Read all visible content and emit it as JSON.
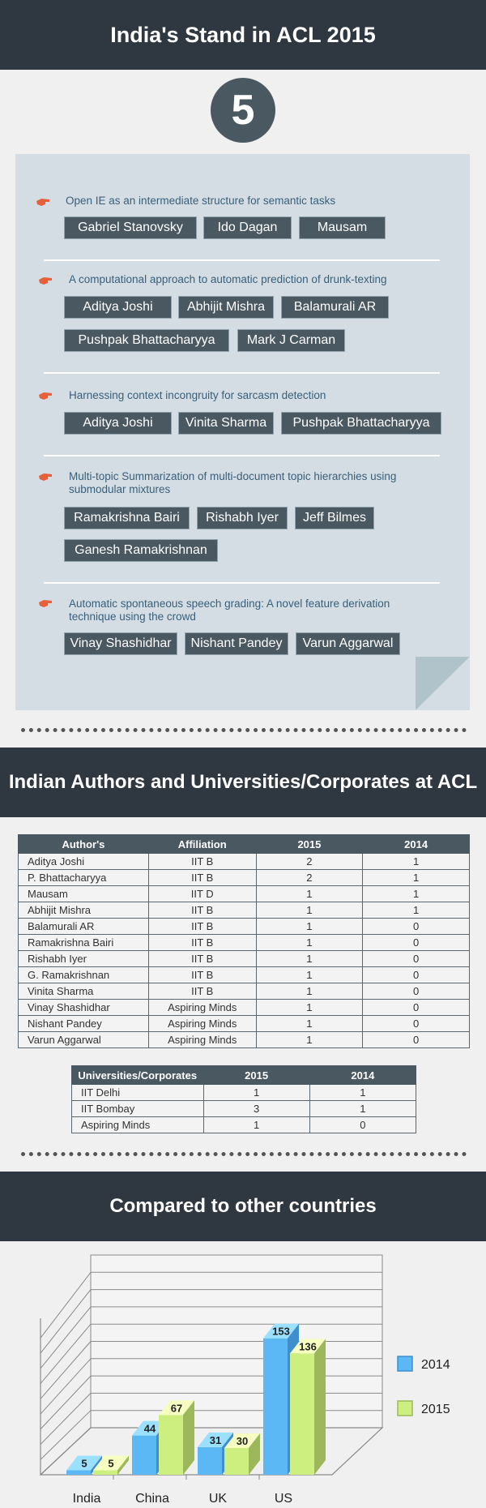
{
  "header": {
    "title": "India's Stand in ACL  2015",
    "count": "5"
  },
  "papers": [
    {
      "title": "Open IE as an intermediate structure for semantic tasks",
      "authors": [
        "Gabriel Stanovsky",
        "Ido Dagan",
        "Mausam"
      ]
    },
    {
      "title": "A computational approach to automatic prediction of drunk-texting",
      "authors": [
        "Aditya Joshi",
        "Abhijit Mishra",
        "Balamurali AR",
        "Pushpak Bhattacharyya",
        "Mark J Carman"
      ]
    },
    {
      "title": "Harnessing context incongruity for sarcasm detection",
      "authors": [
        "Aditya Joshi",
        "Vinita Sharma",
        "Pushpak Bhattacharyya"
      ]
    },
    {
      "title_lines": [
        "Multi-topic Summarization of multi-document topic hierarchies using",
        "submodular mixtures"
      ],
      "authors": [
        "Ramakrishna Bairi",
        "Rishabh Iyer",
        "Jeff Bilmes",
        "Ganesh Ramakrishnan"
      ]
    },
    {
      "title_lines": [
        "Automatic spontaneous speech grading: A novel feature derivation",
        "technique using the crowd"
      ],
      "authors": [
        "Vinay Shashidhar",
        "Nishant Pandey",
        "Varun Aggarwal"
      ]
    }
  ],
  "section2": {
    "title": "Indian Authors and Universities/Corporates at ACL"
  },
  "authors_table": {
    "headers": [
      "Author's",
      "Affiliation",
      "2015",
      "2014"
    ],
    "rows": [
      [
        "Aditya Joshi",
        "IIT B",
        "2",
        "1"
      ],
      [
        "P. Bhattacharyya",
        "IIT B",
        "2",
        "1"
      ],
      [
        "Mausam",
        "IIT D",
        "1",
        "1"
      ],
      [
        "Abhijit Mishra",
        "IIT B",
        "1",
        "1"
      ],
      [
        "Balamurali AR",
        "IIT B",
        "1",
        "0"
      ],
      [
        "Ramakrishna Bairi",
        "IIT B",
        "1",
        "0"
      ],
      [
        "Rishabh Iyer",
        "IIT B",
        "1",
        "0"
      ],
      [
        "G. Ramakrishnan",
        "IIT B",
        "1",
        "0"
      ],
      [
        "Vinita Sharma",
        "IIT B",
        "1",
        "0"
      ],
      [
        "Vinay Shashidhar",
        "Aspiring Minds",
        "1",
        "0"
      ],
      [
        "Nishant Pandey",
        "Aspiring Minds",
        "1",
        "0"
      ],
      [
        "Varun Aggarwal",
        "Aspiring Minds",
        "1",
        "0"
      ]
    ]
  },
  "univ_table": {
    "headers": [
      "Universities/Corporates",
      "2015",
      "2014"
    ],
    "rows": [
      [
        "IIT Delhi",
        "1",
        "1"
      ],
      [
        "IIT Bombay",
        "3",
        "1"
      ],
      [
        "Aspiring Minds",
        "1",
        "0"
      ]
    ]
  },
  "section3": {
    "title": "Compared to other countries"
  },
  "colors": {
    "dark": "#2f3740",
    "tag": "#4a5862",
    "series2014": "#5bb8f5",
    "series2015": "#ccef7f",
    "bullet": "#e85f3c"
  },
  "chart_data": {
    "type": "bar",
    "categories": [
      "India",
      "China",
      "UK",
      "US"
    ],
    "series": [
      {
        "name": "2014",
        "values": [
          5,
          44,
          31,
          153
        ]
      },
      {
        "name": "2015",
        "values": [
          5,
          67,
          30,
          136
        ]
      }
    ],
    "legend_position": "right",
    "grid": true
  }
}
